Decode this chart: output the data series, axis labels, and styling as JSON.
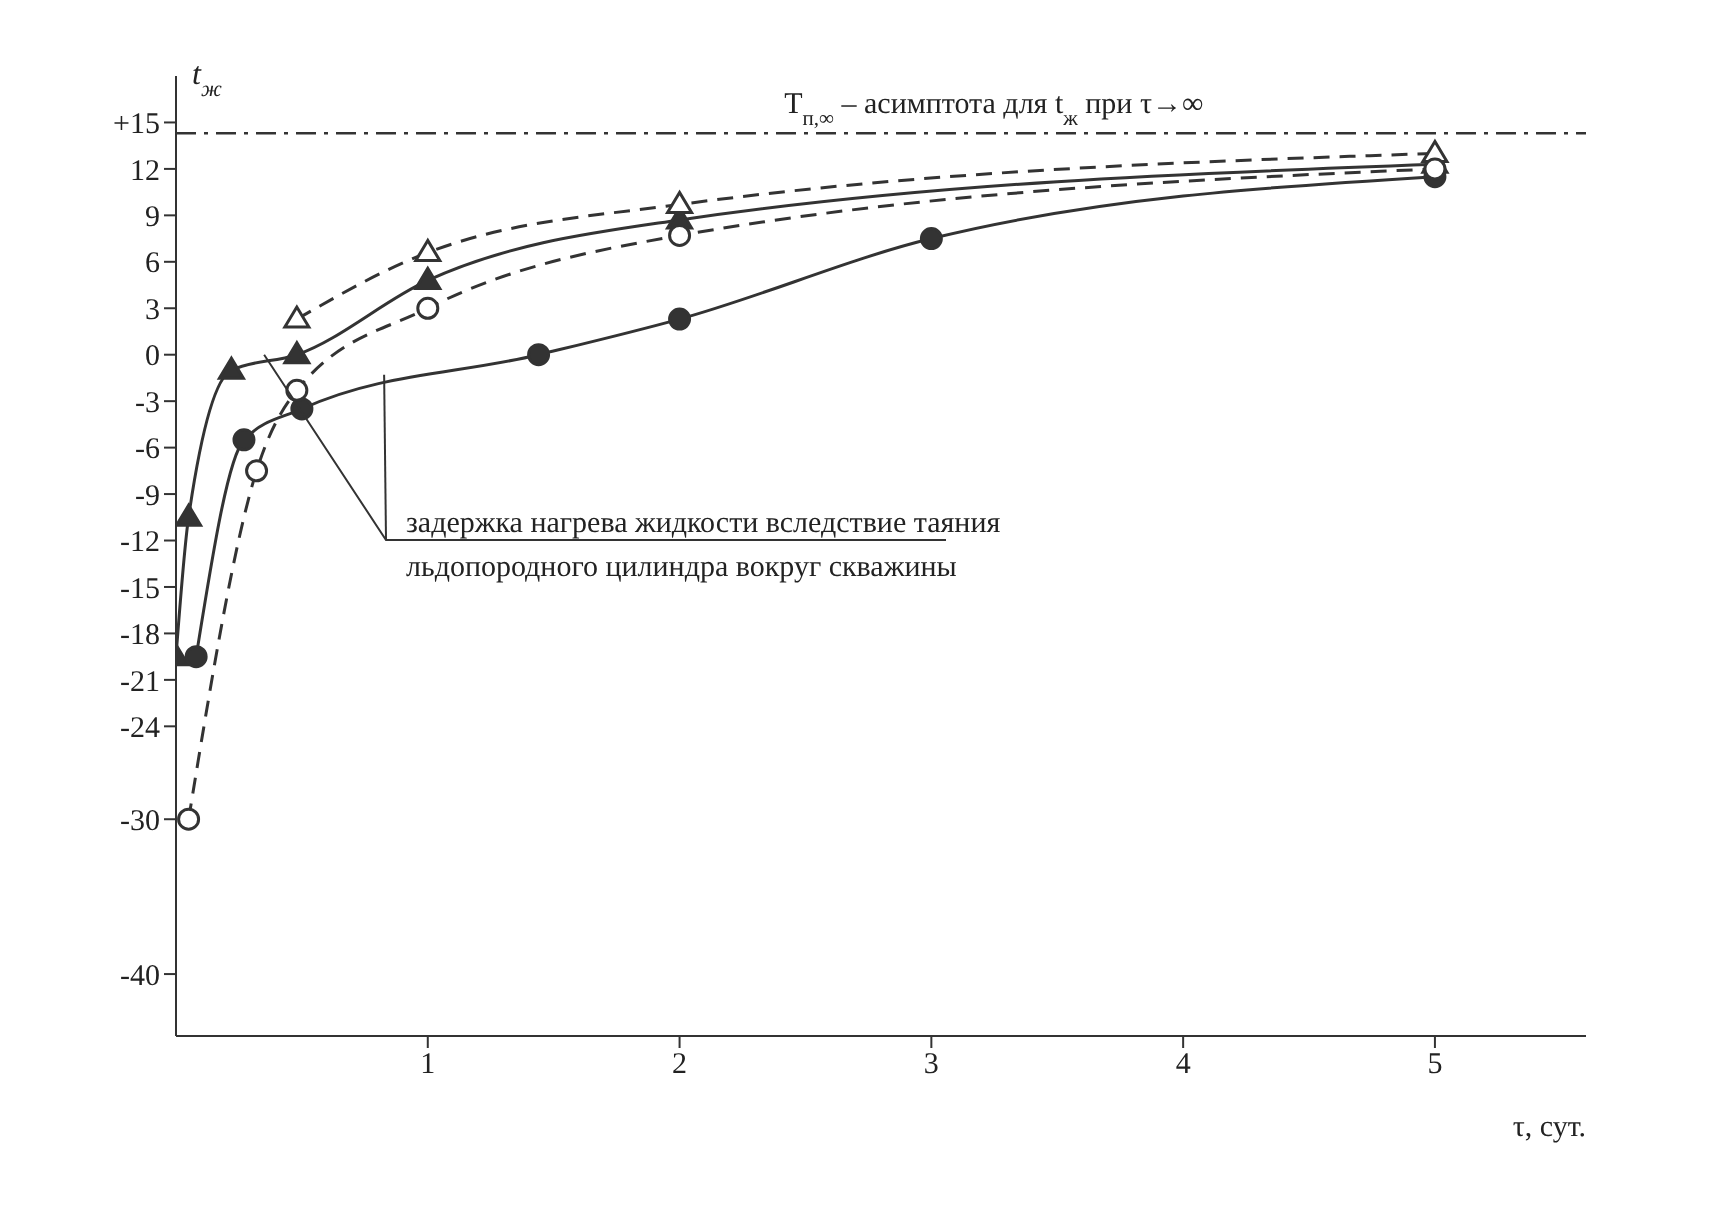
{
  "chart_data": {
    "type": "line",
    "xlabel": "τ, сут.",
    "ylabel": "t$_{ж}$",
    "xlim": [
      0,
      5.6
    ],
    "ylim": [
      -44,
      18
    ],
    "xticks": [
      1,
      2,
      3,
      4,
      5
    ],
    "yticks": [
      {
        "value": 15,
        "label": "+15"
      },
      12,
      9,
      6,
      3,
      0,
      -3,
      -6,
      -9,
      -12,
      -15,
      -18,
      -21,
      -24,
      -30,
      -40
    ],
    "series": [
      {
        "color": "#333333",
        "marker": "triangle",
        "line_style": "solid",
        "x": [
          0,
          0.05,
          0.22,
          0.48,
          1,
          2,
          5
        ],
        "values": [
          -19.5,
          -10.5,
          -1,
          0,
          4.8,
          8.7,
          12.3
        ]
      },
      {
        "color": "#333333",
        "marker": "triangle",
        "line_style": "dashed",
        "x": [
          0.48,
          1,
          2,
          5
        ],
        "values": [
          2.3,
          6.6,
          9.7,
          13
        ]
      },
      {
        "color": "#333333",
        "marker": "circle",
        "line_style": "solid",
        "x": [
          0.08,
          0.27,
          0.5,
          1.44,
          2,
          3,
          5
        ],
        "values": [
          -19.5,
          -5.5,
          -3.5,
          0,
          2.3,
          7.5,
          11.5
        ]
      },
      {
        "color": "#333333",
        "marker": "circle",
        "line_style": "dashed",
        "x": [
          0.05,
          0.32,
          0.48,
          1,
          2,
          5
        ],
        "values": [
          -30,
          -7.5,
          -2.3,
          3,
          7.7,
          12
        ]
      }
    ],
    "ref_lines": [
      {
        "axis": "y",
        "value": 14.3,
        "label": "T$_{п,∞}$ – асимптота для t$_{ж}$ при τ→∞",
        "line_style": "dashdot",
        "color": "#333333"
      }
    ],
    "annotations": [
      {
        "text": "задержка нагрева жидкости вследствие таяния льдопородного цилиндра вокруг скважины",
        "x": 0.35,
        "y": 0
      }
    ]
  }
}
